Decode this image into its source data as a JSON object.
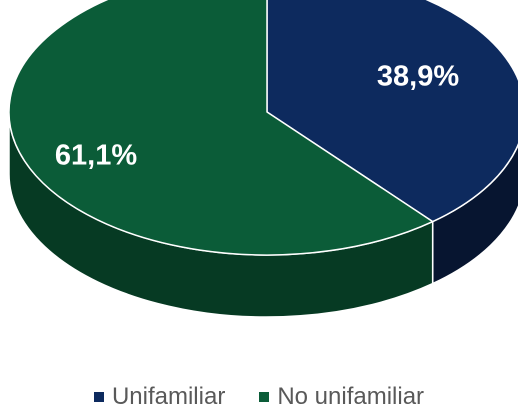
{
  "chart_data": {
    "type": "pie",
    "categories": [
      "Unifamiliar",
      "No unifamiliar"
    ],
    "values": [
      38.9,
      61.1
    ],
    "data_labels": [
      "38,9%",
      "61,1%"
    ],
    "colors": [
      "#0d2a5e",
      "#0b5c38"
    ],
    "side_colors": [
      "#071530",
      "#063a23"
    ],
    "legend_position": "bottom",
    "style": "3d"
  }
}
